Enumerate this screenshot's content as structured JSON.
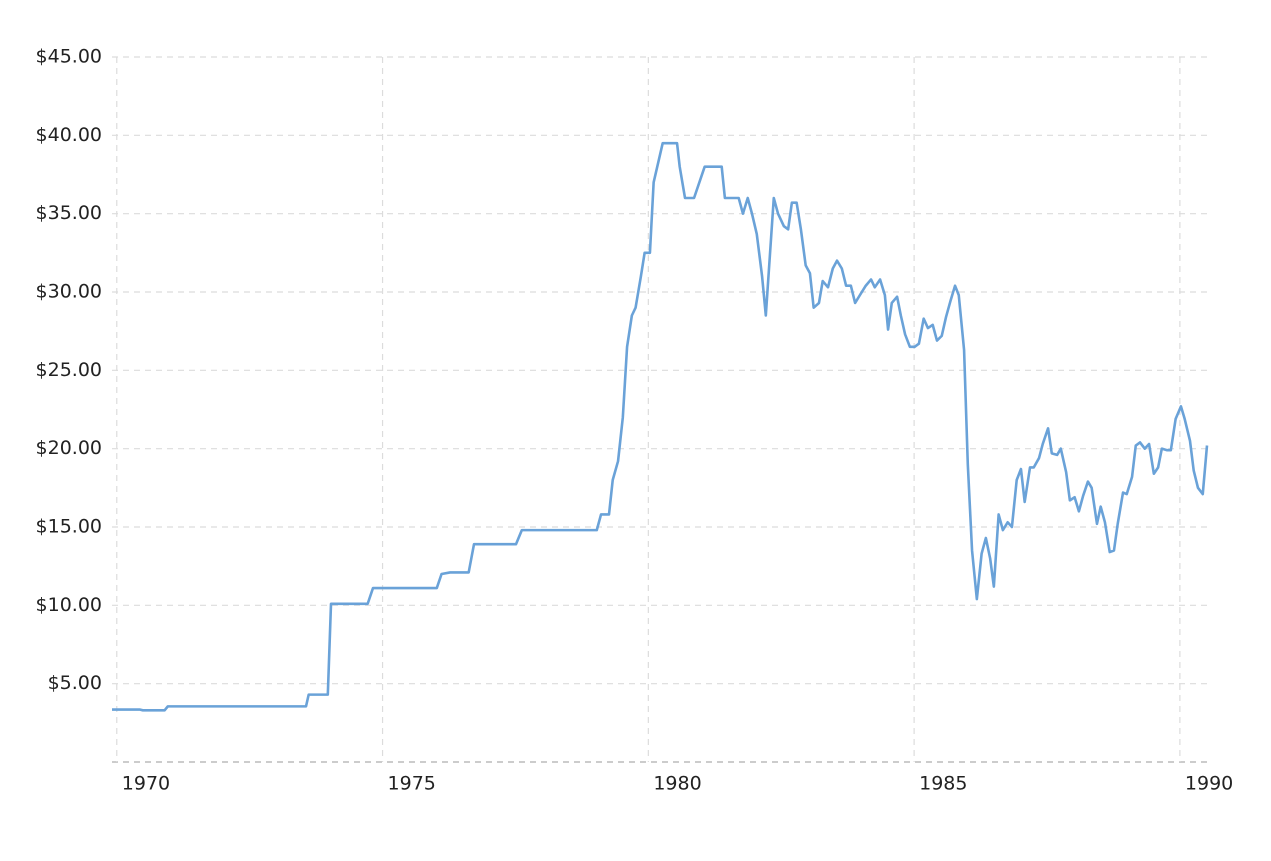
{
  "chart_data": {
    "type": "line",
    "color": "#6aa2d8",
    "grid": true,
    "xlim": [
      1969.91,
      1990.51
    ],
    "xticks": [
      1970,
      1975,
      1980,
      1985,
      1990
    ],
    "ylim": [
      0,
      45
    ],
    "yticks": [
      {
        "value": 5,
        "label": "$5.00"
      },
      {
        "value": 10,
        "label": "$10.00"
      },
      {
        "value": 15,
        "label": "$15.00"
      },
      {
        "value": 20,
        "label": "$20.00"
      },
      {
        "value": 25,
        "label": "$25.00"
      },
      {
        "value": 30,
        "label": "$30.00"
      },
      {
        "value": 35,
        "label": "$35.00"
      },
      {
        "value": 40,
        "label": "$40.00"
      },
      {
        "value": 45,
        "label": "$45.00"
      }
    ],
    "x": [
      1969.91,
      1970.43,
      1970.49,
      1970.9,
      1970.96,
      1973.56,
      1973.61,
      1973.97,
      1974.03,
      1974.72,
      1974.82,
      1976.02,
      1976.11,
      1976.27,
      1976.62,
      1976.72,
      1977.51,
      1977.62,
      1979.03,
      1979.11,
      1979.26,
      1979.33,
      1979.43,
      1979.52,
      1979.6,
      1979.69,
      1979.76,
      1979.86,
      1979.93,
      1980.03,
      1980.1,
      1980.27,
      1980.54,
      1980.59,
      1980.69,
      1980.86,
      1981.06,
      1981.38,
      1981.44,
      1981.7,
      1981.78,
      1981.87,
      1981.95,
      1982.04,
      1982.14,
      1982.21,
      1982.31,
      1982.36,
      1982.44,
      1982.55,
      1982.63,
      1982.7,
      1982.79,
      1982.87,
      1982.96,
      1983.04,
      1983.11,
      1983.21,
      1983.28,
      1983.38,
      1983.47,
      1983.55,
      1983.64,
      1983.72,
      1983.81,
      1983.89,
      1983.98,
      1984.09,
      1984.19,
      1984.26,
      1984.36,
      1984.45,
      1984.51,
      1984.58,
      1984.68,
      1984.75,
      1984.83,
      1984.92,
      1985.01,
      1985.09,
      1985.18,
      1985.26,
      1985.35,
      1985.43,
      1985.52,
      1985.6,
      1985.69,
      1985.77,
      1985.84,
      1985.94,
      1986.01,
      1986.09,
      1986.18,
      1986.27,
      1986.35,
      1986.43,
      1986.5,
      1986.59,
      1986.67,
      1986.76,
      1986.84,
      1986.93,
      1987.01,
      1987.08,
      1987.18,
      1987.25,
      1987.35,
      1987.42,
      1987.52,
      1987.59,
      1987.69,
      1987.76,
      1987.86,
      1987.93,
      1988.02,
      1988.1,
      1988.18,
      1988.27,
      1988.34,
      1988.44,
      1988.51,
      1988.59,
      1988.68,
      1988.76,
      1988.83,
      1988.93,
      1989.0,
      1989.1,
      1989.17,
      1989.25,
      1989.34,
      1989.42,
      1989.51,
      1989.59,
      1989.66,
      1989.76,
      1989.83,
      1989.92,
      1990.02,
      1990.09,
      1990.19,
      1990.26,
      1990.34,
      1990.43,
      1990.51
    ],
    "values": [
      3.35,
      3.35,
      3.3,
      3.3,
      3.55,
      3.55,
      4.3,
      4.3,
      10.1,
      10.1,
      11.1,
      11.1,
      12,
      12.1,
      12.1,
      13.9,
      13.9,
      14.8,
      14.8,
      15.8,
      15.8,
      18,
      19.2,
      22,
      26.5,
      28.5,
      29,
      31,
      32.5,
      32.5,
      37,
      39.5,
      39.5,
      38,
      36,
      36,
      38,
      38,
      36,
      36,
      35,
      36,
      35,
      33.7,
      31,
      28.5,
      33.5,
      36,
      35,
      34.2,
      34,
      35.7,
      35.7,
      34,
      31.7,
      31.2,
      29,
      29.3,
      30.7,
      30.3,
      31.5,
      32,
      31.5,
      30.4,
      30.4,
      29.3,
      29.8,
      30.4,
      30.8,
      30.3,
      30.8,
      29.8,
      27.6,
      29.3,
      29.7,
      28.5,
      27.3,
      26.5,
      26.5,
      26.7,
      28.3,
      27.7,
      27.9,
      26.9,
      27.2,
      28.4,
      29.5,
      30.4,
      29.8,
      26.3,
      19,
      13.5,
      10.4,
      13.3,
      14.3,
      13,
      11.2,
      15.8,
      14.8,
      15.3,
      15,
      18,
      18.7,
      16.6,
      18.8,
      18.8,
      19.4,
      20.3,
      21.3,
      19.7,
      19.6,
      20,
      18.5,
      16.7,
      16.9,
      16,
      17,
      17.9,
      17.5,
      15.2,
      16.3,
      15.3,
      13.4,
      13.5,
      15.2,
      17.2,
      17.1,
      18.2,
      20.2,
      20.4,
      20,
      20.3,
      18.4,
      18.8,
      20,
      19.9,
      19.9,
      21.9,
      22.7,
      21.9,
      20.5,
      18.6,
      17.5,
      17.1,
      20.2
    ]
  }
}
